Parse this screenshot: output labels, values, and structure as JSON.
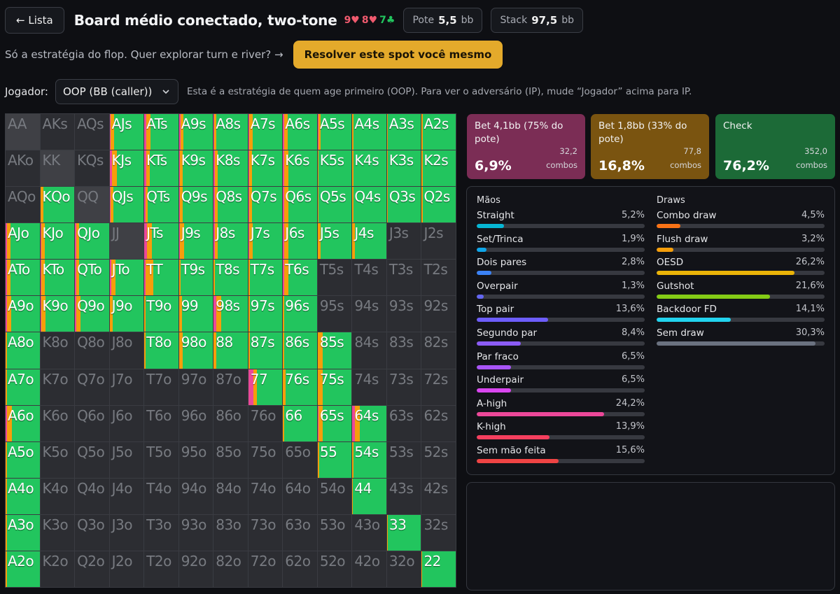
{
  "header": {
    "back_label": "← Lista",
    "title": "Board médio conectado, two-tone",
    "board": [
      {
        "t": "9♥",
        "c": "r"
      },
      {
        "t": "8♥",
        "c": "r"
      },
      {
        "t": "7♣",
        "c": "g"
      }
    ],
    "pot_label": "Pote",
    "pot_value": "5,5",
    "pot_unit": "bb",
    "stack_label": "Stack",
    "stack_value": "97,5",
    "stack_unit": "bb"
  },
  "promo": {
    "text": "Só a estratégia do flop. Quer explorar turn e river? →",
    "button": "Resolver este spot você mesmo"
  },
  "player": {
    "label": "Jogador:",
    "selected": "OOP (BB (caller))",
    "hint": "Esta é a estratégia de quem age primeiro (OOP). Para ver o adversário (IP), mude “Jogador” acima para IP."
  },
  "actions": [
    {
      "name": "Bet 4,1bb (75% do pote)",
      "pct": "6,9%",
      "combos": "32,2",
      "combos_label": "combos",
      "color": "#7b2d55"
    },
    {
      "name": "Bet 1,8bb (33% do pote)",
      "pct": "16,8%",
      "combos": "77,8",
      "combos_label": "combos",
      "color": "#7a5410"
    },
    {
      "name": "Check",
      "pct": "76,2%",
      "combos": "352,0",
      "combos_label": "combos",
      "color": "#1c6a37"
    }
  ],
  "strategy_colors": {
    "bet_big": "#ec4899",
    "bet_small": "#f59e0b",
    "check": "#22c55e"
  },
  "hands_title": "Mãos",
  "hands": [
    {
      "name": "Straight",
      "value": "5,2%",
      "pct": 5.2,
      "color": "#06b6d4"
    },
    {
      "name": "Set/Trinca",
      "value": "1,9%",
      "pct": 1.9,
      "color": "#0ea5e9"
    },
    {
      "name": "Dois pares",
      "value": "2,8%",
      "pct": 2.8,
      "color": "#3b82f6"
    },
    {
      "name": "Overpair",
      "value": "1,3%",
      "pct": 1.3,
      "color": "#6366f1"
    },
    {
      "name": "Top pair",
      "value": "13,6%",
      "pct": 13.6,
      "color": "#6d5dfc"
    },
    {
      "name": "Segundo par",
      "value": "8,4%",
      "pct": 8.4,
      "color": "#8b5cf6"
    },
    {
      "name": "Par fraco",
      "value": "6,5%",
      "pct": 6.5,
      "color": "#a855f7"
    },
    {
      "name": "Underpair",
      "value": "6,5%",
      "pct": 6.5,
      "color": "#d946ef"
    },
    {
      "name": "A-high",
      "value": "24,2%",
      "pct": 24.2,
      "color": "#ec4899"
    },
    {
      "name": "K-high",
      "value": "13,9%",
      "pct": 13.9,
      "color": "#f43f5e"
    },
    {
      "name": "Sem mão feita",
      "value": "15,6%",
      "pct": 15.6,
      "color": "#ef4444"
    }
  ],
  "draws_title": "Draws",
  "draws": [
    {
      "name": "Combo draw",
      "value": "4,5%",
      "pct": 4.5,
      "color": "#f97316"
    },
    {
      "name": "Flush draw",
      "value": "3,2%",
      "pct": 3.2,
      "color": "#f59e0b"
    },
    {
      "name": "OESD",
      "value": "26,2%",
      "pct": 26.2,
      "color": "#eab308"
    },
    {
      "name": "Gutshot",
      "value": "21,6%",
      "pct": 21.6,
      "color": "#84cc16"
    },
    {
      "name": "Backdoor FD",
      "value": "14,1%",
      "pct": 14.1,
      "color": "#22d3ee"
    },
    {
      "name": "Sem draw",
      "value": "30,3%",
      "pct": 30.3,
      "color": "#6b7280"
    }
  ],
  "grid": {
    "hands": [
      [
        "AA",
        "AKs",
        "AQs",
        "AJs",
        "ATs",
        "A9s",
        "A8s",
        "A7s",
        "A6s",
        "A5s",
        "A4s",
        "A3s",
        "A2s"
      ],
      [
        "AKo",
        "KK",
        "KQs",
        "KJs",
        "KTs",
        "K9s",
        "K8s",
        "K7s",
        "K6s",
        "K5s",
        "K4s",
        "K3s",
        "K2s"
      ],
      [
        "AQo",
        "KQo",
        "QQ",
        "QJs",
        "QTs",
        "Q9s",
        "Q8s",
        "Q7s",
        "Q6s",
        "Q5s",
        "Q4s",
        "Q3s",
        "Q2s"
      ],
      [
        "AJo",
        "KJo",
        "QJo",
        "JJ",
        "JTs",
        "J9s",
        "J8s",
        "J7s",
        "J6s",
        "J5s",
        "J4s",
        "J3s",
        "J2s"
      ],
      [
        "ATo",
        "KTo",
        "QTo",
        "JTo",
        "TT",
        "T9s",
        "T8s",
        "T7s",
        "T6s",
        "T5s",
        "T4s",
        "T3s",
        "T2s"
      ],
      [
        "A9o",
        "K9o",
        "Q9o",
        "J9o",
        "T9o",
        "99",
        "98s",
        "97s",
        "96s",
        "95s",
        "94s",
        "93s",
        "92s"
      ],
      [
        "A8o",
        "K8o",
        "Q8o",
        "J8o",
        "T8o",
        "98o",
        "88",
        "87s",
        "86s",
        "85s",
        "84s",
        "83s",
        "82s"
      ],
      [
        "A7o",
        "K7o",
        "Q7o",
        "J7o",
        "T7o",
        "97o",
        "87o",
        "77",
        "76s",
        "75s",
        "74s",
        "73s",
        "72s"
      ],
      [
        "A6o",
        "K6o",
        "Q6o",
        "J6o",
        "T6o",
        "96o",
        "86o",
        "76o",
        "66",
        "65s",
        "64s",
        "63s",
        "62s"
      ],
      [
        "A5o",
        "K5o",
        "Q5o",
        "J5o",
        "T5o",
        "95o",
        "85o",
        "75o",
        "65o",
        "55",
        "54s",
        "53s",
        "52s"
      ],
      [
        "A4o",
        "K4o",
        "Q4o",
        "J4o",
        "T4o",
        "94o",
        "84o",
        "74o",
        "64o",
        "54o",
        "44",
        "43s",
        "42s"
      ],
      [
        "A3o",
        "K3o",
        "Q3o",
        "J3o",
        "T3o",
        "93o",
        "83o",
        "73o",
        "63o",
        "53o",
        "43o",
        "33",
        "32s"
      ],
      [
        "A2o",
        "K2o",
        "Q2o",
        "J2o",
        "T2o",
        "92o",
        "82o",
        "72o",
        "62o",
        "52o",
        "42o",
        "32o",
        "22"
      ]
    ],
    "strategy": {
      "AJs": [
        3,
        10,
        87
      ],
      "ATs": [
        5,
        14,
        81
      ],
      "A9s": [
        4,
        8,
        88
      ],
      "A8s": [
        2,
        6,
        92
      ],
      "A7s": [
        3,
        10,
        87
      ],
      "A6s": [
        4,
        10,
        86
      ],
      "A5s": [
        2,
        6,
        92
      ],
      "A4s": [
        0,
        3,
        97
      ],
      "A3s": [
        0,
        3,
        97
      ],
      "A2s": [
        0,
        3,
        97
      ],
      "KJs": [
        8,
        14,
        78
      ],
      "KTs": [
        5,
        12,
        83
      ],
      "K9s": [
        3,
        8,
        89
      ],
      "K8s": [
        3,
        8,
        89
      ],
      "K7s": [
        3,
        8,
        89
      ],
      "K6s": [
        4,
        12,
        84
      ],
      "K5s": [
        0,
        3,
        97
      ],
      "K4s": [
        0,
        3,
        97
      ],
      "K3s": [
        0,
        3,
        97
      ],
      "K2s": [
        0,
        3,
        97
      ],
      "KQo": [
        0,
        10,
        90
      ],
      "QJs": [
        3,
        8,
        89
      ],
      "QTs": [
        3,
        8,
        89
      ],
      "Q9s": [
        3,
        8,
        89
      ],
      "Q8s": [
        3,
        8,
        89
      ],
      "Q7s": [
        3,
        8,
        89
      ],
      "Q6s": [
        4,
        12,
        84
      ],
      "Q5s": [
        0,
        3,
        97
      ],
      "Q4s": [
        0,
        3,
        97
      ],
      "Q3s": [
        0,
        3,
        97
      ],
      "Q2s": [
        0,
        3,
        97
      ],
      "AJo": [
        4,
        10,
        86
      ],
      "KJo": [
        3,
        10,
        87
      ],
      "QJo": [
        3,
        10,
        87
      ],
      "JTs": [
        8,
        14,
        78
      ],
      "J9s": [
        3,
        12,
        85
      ],
      "J8s": [
        3,
        8,
        89
      ],
      "J7s": [
        3,
        10,
        87
      ],
      "J6s": [
        4,
        12,
        84
      ],
      "J5s": [
        0,
        8,
        92
      ],
      "J4s": [
        0,
        8,
        92
      ],
      "ATo": [
        4,
        10,
        86
      ],
      "KTo": [
        4,
        10,
        86
      ],
      "QTo": [
        3,
        10,
        87
      ],
      "JTo": [
        4,
        14,
        82
      ],
      "TT": [
        4,
        22,
        74
      ],
      "T9s": [
        0,
        4,
        96
      ],
      "T8s": [
        0,
        4,
        96
      ],
      "T7s": [
        0,
        4,
        96
      ],
      "T6s": [
        3,
        12,
        85
      ],
      "A9o": [
        4,
        12,
        84
      ],
      "K9o": [
        4,
        12,
        84
      ],
      "Q9o": [
        4,
        12,
        84
      ],
      "J9o": [
        0,
        10,
        90
      ],
      "T9o": [
        0,
        4,
        96
      ],
      "99": [
        0,
        8,
        92
      ],
      "98s": [
        8,
        14,
        78
      ],
      "97s": [
        0,
        4,
        96
      ],
      "96s": [
        0,
        4,
        96
      ],
      "A8o": [
        0,
        4,
        96
      ],
      "T8o": [
        0,
        4,
        96
      ],
      "98o": [
        0,
        10,
        90
      ],
      "88": [
        0,
        8,
        92
      ],
      "87s": [
        0,
        4,
        96
      ],
      "86s": [
        0,
        4,
        96
      ],
      "85s": [
        0,
        14,
        86
      ],
      "A7o": [
        0,
        4,
        96
      ],
      "77": [
        14,
        12,
        74
      ],
      "76s": [
        0,
        8,
        92
      ],
      "75s": [
        0,
        14,
        86
      ],
      "A6o": [
        5,
        14,
        81
      ],
      "66": [
        0,
        4,
        96
      ],
      "65s": [
        3,
        12,
        85
      ],
      "64s": [
        8,
        14,
        78
      ],
      "A5o": [
        0,
        4,
        96
      ],
      "55": [
        0,
        4,
        96
      ],
      "54s": [
        0,
        4,
        96
      ],
      "A4o": [
        0,
        4,
        96
      ],
      "44": [
        0,
        2,
        98
      ],
      "A3o": [
        0,
        4,
        96
      ],
      "33": [
        0,
        2,
        98
      ],
      "A2o": [
        0,
        4,
        96
      ],
      "22": [
        0,
        2,
        98
      ]
    }
  }
}
